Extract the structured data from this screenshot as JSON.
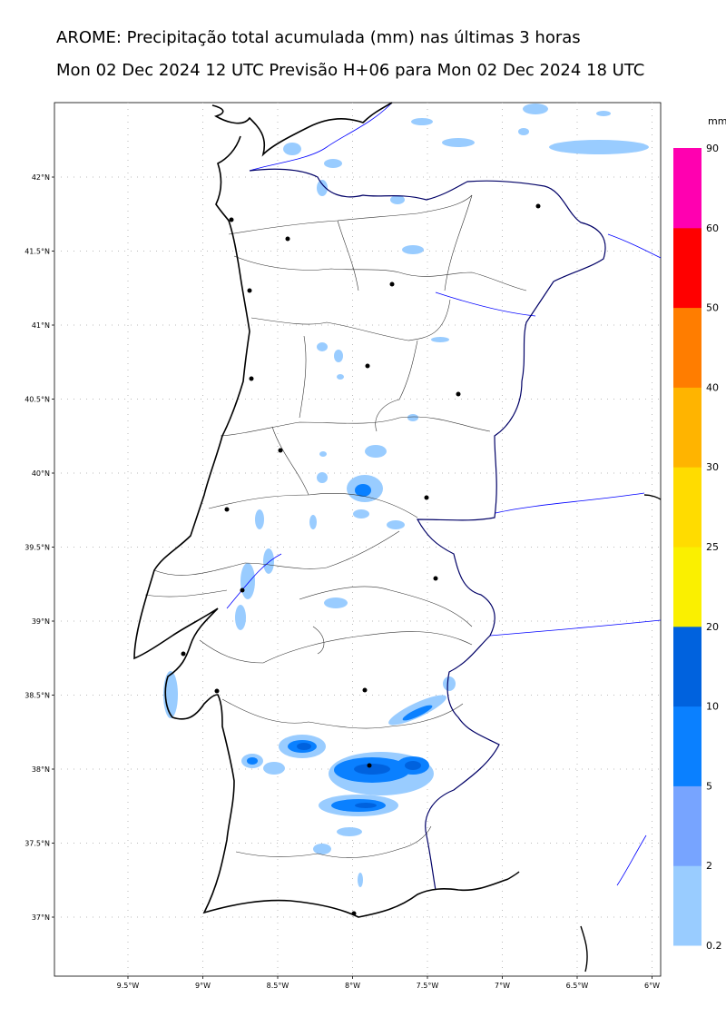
{
  "title_line1": "AROME: Precipitação total acumulada (mm) nas últimas 3 horas",
  "title_line2": "Mon 02 Dec 2024 12 UTC Previsão H+06 para Mon 02 Dec 2024 18 UTC",
  "lat_labels": [
    "42°N",
    "41.5°N",
    "41°N",
    "40.5°N",
    "40°N",
    "39.5°N",
    "39°N",
    "38.5°N",
    "38°N",
    "37.5°N",
    "37°N"
  ],
  "lon_labels": [
    "9.5°W",
    "9°W",
    "8.5°W",
    "8°W",
    "7.5°W",
    "7°W",
    "6.5°W",
    "6°W"
  ],
  "colorbar": {
    "unit": "mm",
    "levels": [
      "0.2",
      "2",
      "5",
      "10",
      "20",
      "25",
      "30",
      "40",
      "50",
      "60",
      "90"
    ],
    "colors": [
      "#99ccff",
      "#77a4ff",
      "#0a80ff",
      "#0062de",
      "#faf000",
      "#ffdc00",
      "#ffb400",
      "#ff7d00",
      "#ff0000",
      "#ff00b0"
    ]
  },
  "colors": {
    "coast": "#000000",
    "border": "#000066",
    "rivers": "#0000ff",
    "districts": "#333333",
    "precip_light": "#99ccff",
    "precip_mid": "#0a80ff",
    "precip_heavy": "#0062de"
  }
}
